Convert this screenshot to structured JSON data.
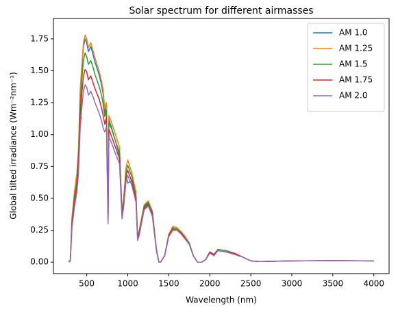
{
  "chart_data": {
    "type": "line",
    "title": "Solar spectrum for different airmasses",
    "xlabel": "Wavelength (nm)",
    "ylabel": "Global tilted irradiance (Wm⁻²nm⁻¹)",
    "x": [
      280,
      300,
      320,
      350,
      380,
      400,
      420,
      440,
      460,
      480,
      500,
      520,
      550,
      580,
      600,
      650,
      680,
      700,
      720,
      740,
      760,
      770,
      800,
      850,
      900,
      930,
      950,
      980,
      1000,
      1050,
      1100,
      1120,
      1140,
      1200,
      1250,
      1300,
      1350,
      1380,
      1400,
      1450,
      1500,
      1550,
      1600,
      1650,
      1700,
      1750,
      1800,
      1850,
      1900,
      1950,
      2000,
      2050,
      2100,
      2200,
      2300,
      2400,
      2500,
      2600,
      3000,
      3500,
      4000
    ],
    "series": [
      {
        "name": "AM 1.0",
        "color": "#1f77b4",
        "values": [
          0,
          0.02,
          0.34,
          0.54,
          0.69,
          0.88,
          1.32,
          1.52,
          1.69,
          1.75,
          1.72,
          1.65,
          1.69,
          1.62,
          1.57,
          1.47,
          1.39,
          1.32,
          1.17,
          1.22,
          0.34,
          1.12,
          1.06,
          0.95,
          0.83,
          0.37,
          0.46,
          0.68,
          0.62,
          0.64,
          0.51,
          0.19,
          0.23,
          0.43,
          0.46,
          0.38,
          0.09,
          0,
          0,
          0.05,
          0.21,
          0.27,
          0.26,
          0.23,
          0.19,
          0.14,
          0.05,
          0,
          0,
          0.02,
          0.08,
          0.06,
          0.1,
          0.09,
          0.07,
          0.04,
          0.01,
          0.005,
          0.01,
          0.012,
          0.01
        ]
      },
      {
        "name": "AM 1.25",
        "color": "#ff7f0e",
        "values": [
          0,
          0.02,
          0.35,
          0.55,
          0.7,
          0.9,
          1.35,
          1.55,
          1.72,
          1.78,
          1.75,
          1.68,
          1.72,
          1.65,
          1.6,
          1.5,
          1.42,
          1.35,
          1.2,
          1.25,
          0.35,
          1.15,
          1.1,
          1.0,
          0.9,
          0.4,
          0.5,
          0.75,
          0.8,
          0.7,
          0.55,
          0.2,
          0.25,
          0.45,
          0.48,
          0.4,
          0.1,
          0,
          0,
          0.05,
          0.22,
          0.28,
          0.27,
          0.24,
          0.2,
          0.15,
          0.05,
          0,
          0,
          0.02,
          0.08,
          0.06,
          0.1,
          0.09,
          0.07,
          0.04,
          0.01,
          0.005,
          0.01,
          0.012,
          0.01
        ]
      },
      {
        "name": "AM 1.5",
        "color": "#2ca02c",
        "values": [
          0,
          0.01,
          0.32,
          0.51,
          0.64,
          0.83,
          1.24,
          1.43,
          1.58,
          1.64,
          1.61,
          1.55,
          1.58,
          1.52,
          1.47,
          1.38,
          1.31,
          1.24,
          1.14,
          1.19,
          0.33,
          1.09,
          1.05,
          0.95,
          0.86,
          0.38,
          0.48,
          0.71,
          0.76,
          0.67,
          0.52,
          0.19,
          0.24,
          0.44,
          0.47,
          0.39,
          0.1,
          0,
          0,
          0.05,
          0.21,
          0.27,
          0.26,
          0.23,
          0.19,
          0.15,
          0.05,
          0,
          0,
          0.02,
          0.08,
          0.06,
          0.1,
          0.09,
          0.07,
          0.04,
          0.01,
          0.005,
          0.01,
          0.012,
          0.01
        ]
      },
      {
        "name": "AM 1.75",
        "color": "#d62728",
        "values": [
          0,
          0.01,
          0.3,
          0.47,
          0.6,
          0.77,
          1.15,
          1.32,
          1.46,
          1.51,
          1.49,
          1.43,
          1.46,
          1.4,
          1.36,
          1.28,
          1.21,
          1.15,
          1.08,
          1.13,
          0.32,
          1.04,
          0.99,
          0.9,
          0.81,
          0.36,
          0.45,
          0.68,
          0.72,
          0.63,
          0.5,
          0.18,
          0.23,
          0.42,
          0.45,
          0.38,
          0.09,
          0,
          0,
          0.05,
          0.21,
          0.26,
          0.25,
          0.23,
          0.19,
          0.14,
          0.05,
          0,
          0,
          0.02,
          0.08,
          0.06,
          0.09,
          0.08,
          0.07,
          0.04,
          0.01,
          0.005,
          0.01,
          0.012,
          0.01
        ]
      },
      {
        "name": "AM 2.0",
        "color": "#9467bd",
        "values": [
          0,
          0.01,
          0.27,
          0.43,
          0.55,
          0.7,
          1.05,
          1.21,
          1.34,
          1.39,
          1.37,
          1.31,
          1.34,
          1.29,
          1.25,
          1.17,
          1.11,
          1.05,
          1.02,
          1.06,
          0.3,
          0.98,
          0.94,
          0.85,
          0.77,
          0.34,
          0.43,
          0.64,
          0.68,
          0.6,
          0.47,
          0.17,
          0.21,
          0.41,
          0.44,
          0.36,
          0.09,
          0,
          0,
          0.05,
          0.2,
          0.25,
          0.25,
          0.22,
          0.18,
          0.14,
          0.05,
          0,
          0,
          0.02,
          0.07,
          0.05,
          0.09,
          0.08,
          0.06,
          0.04,
          0.01,
          0.005,
          0.01,
          0.011,
          0.01
        ]
      }
    ],
    "xlim": [
      94,
      4186
    ],
    "ylim": [
      -0.09,
      1.91
    ],
    "xticks": [
      500,
      1000,
      1500,
      2000,
      2500,
      3000,
      3500,
      4000
    ],
    "yticks": [
      {
        "value": 0,
        "label": "0.00"
      },
      {
        "value": 0.25,
        "label": "0.25"
      },
      {
        "value": 0.5,
        "label": "0.50"
      },
      {
        "value": 0.75,
        "label": "0.75"
      },
      {
        "value": 1,
        "label": "1.00"
      },
      {
        "value": 1.25,
        "label": "1.25"
      },
      {
        "value": 1.5,
        "label": "1.50"
      },
      {
        "value": 1.75,
        "label": "1.75"
      }
    ],
    "grid": false,
    "legend": "upper right"
  }
}
